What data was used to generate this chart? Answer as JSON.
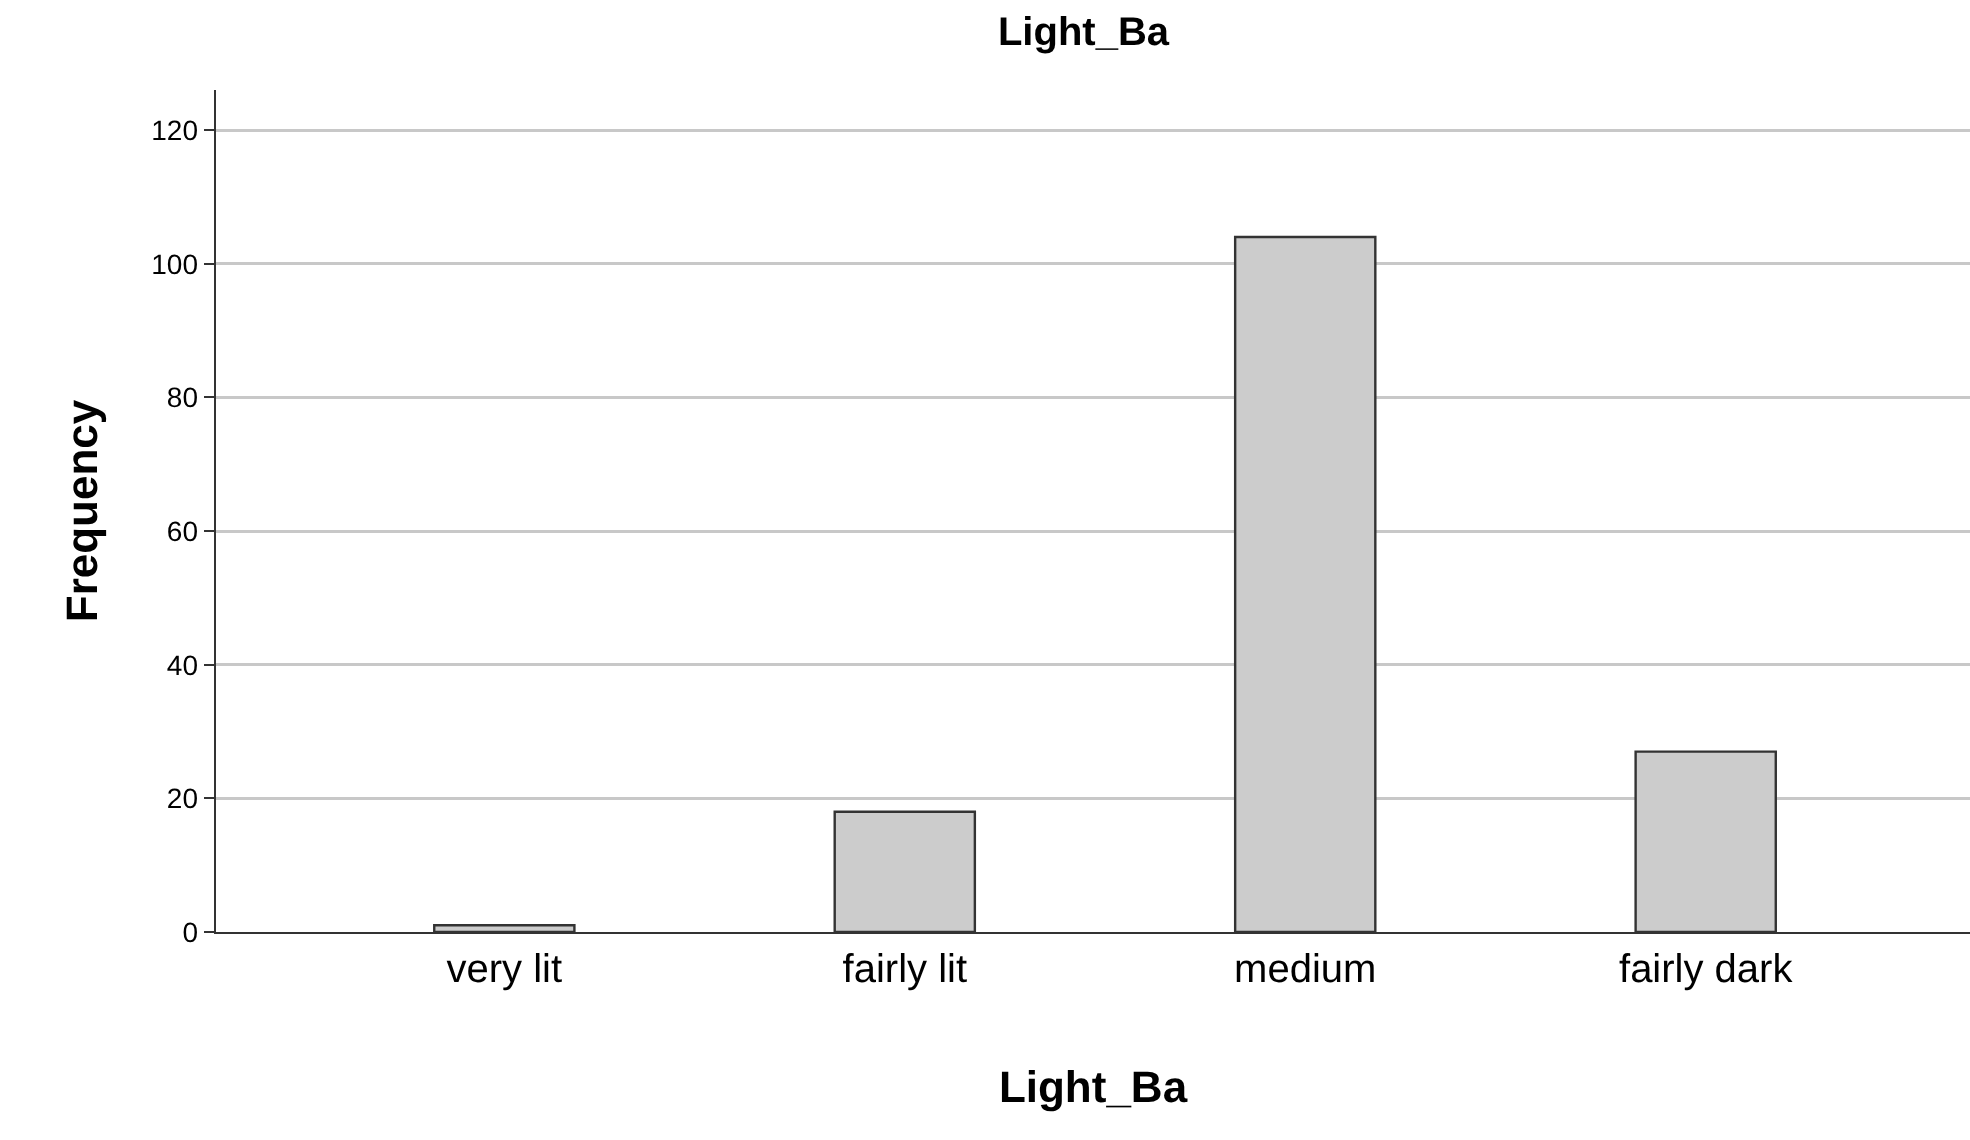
{
  "chart_data": {
    "type": "bar",
    "title": "Light_Ba",
    "xlabel": "Light_Ba",
    "ylabel": "Frequency",
    "categories": [
      "very lit",
      "fairly lit",
      "medium",
      "fairly dark"
    ],
    "values": [
      1,
      18,
      104,
      27
    ],
    "color": "#cccccc",
    "ylim": [
      0,
      126
    ],
    "yticks": [
      0,
      20,
      40,
      60,
      80,
      100,
      120
    ],
    "grid": "y"
  }
}
